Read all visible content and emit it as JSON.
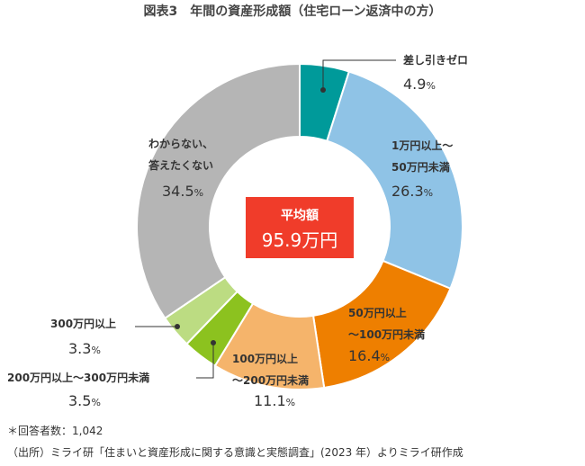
{
  "chart_data": {
    "type": "donut",
    "title": "図表3　年間の資産形成額（住宅ローン返済中の方）",
    "categories": [
      "差し引きゼロ",
      "1万円以上～\n50万円未満",
      "50万円以上\n～100万円未満",
      "100万円以上\n～200万円未満",
      "200万円以上～300万円未満",
      "300万円以上",
      "わからない、\n答えたくない"
    ],
    "values": [
      4.9,
      26.3,
      16.4,
      11.1,
      3.5,
      3.3,
      34.5
    ],
    "value_labels": [
      "4.9%",
      "26.3%",
      "16.4%",
      "11.1%",
      "3.5%",
      "3.3%",
      "34.5%"
    ],
    "colors": [
      "#009a9a",
      "#8fc3e6",
      "#ee7f00",
      "#f5b46b",
      "#8cc21f",
      "#bcdc82",
      "#b5b5b5"
    ],
    "center_title": "平均額",
    "center_value": "95.9万円",
    "notes": [
      "＊回答者数：1,042",
      "（出所）ミライ研「住まいと資産形成に関する意識と実態調査」(2023 年）よりミライ研作成"
    ]
  }
}
